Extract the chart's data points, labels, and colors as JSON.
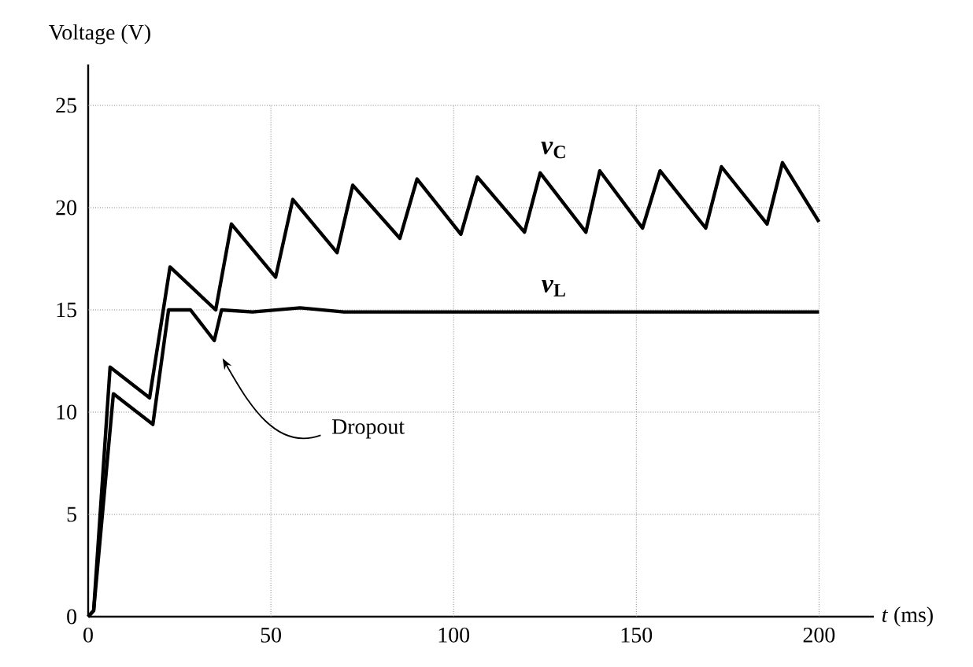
{
  "chart_data": {
    "type": "line",
    "xlabel": "*t* (ms)",
    "ylabel": "Voltage (V)",
    "xlim": [
      0,
      215
    ],
    "ylim": [
      0,
      27
    ],
    "xticks": [
      0,
      50,
      100,
      150,
      200
    ],
    "yticks": [
      0,
      5,
      10,
      15,
      20,
      25
    ],
    "grid": true,
    "marker": "none",
    "line_style": "solid",
    "series": [
      {
        "name": "*v*$_{C}$",
        "color": "#000000",
        "x": [
          0,
          1.5,
          6,
          16.8,
          22.4,
          34.9,
          39.2,
          51.3,
          56,
          68.1,
          72.4,
          85.3,
          90,
          102,
          106.5,
          119.4,
          123.7,
          136.2,
          140,
          151.7,
          156.5,
          169,
          173.3,
          185.8,
          190,
          200
        ],
        "values": [
          0,
          0.3,
          12.2,
          10.7,
          17.1,
          15.0,
          19.2,
          16.6,
          20.4,
          17.8,
          21.1,
          18.5,
          21.4,
          18.7,
          21.5,
          18.8,
          21.7,
          18.8,
          21.8,
          19.0,
          21.8,
          19.0,
          22.0,
          19.2,
          22.2,
          19.3
        ]
      },
      {
        "name": "*v*$_{L}$",
        "color": "#000000",
        "x": [
          0,
          1.5,
          6.9,
          17.7,
          22,
          28,
          34.5,
          36.5,
          45,
          58,
          70,
          100,
          150,
          200
        ],
        "values": [
          0,
          0.3,
          10.9,
          9.4,
          15,
          15,
          13.5,
          15,
          14.9,
          15.1,
          14.9,
          14.9,
          14.9,
          14.9
        ]
      }
    ],
    "annotations": [
      "Dropout"
    ]
  }
}
